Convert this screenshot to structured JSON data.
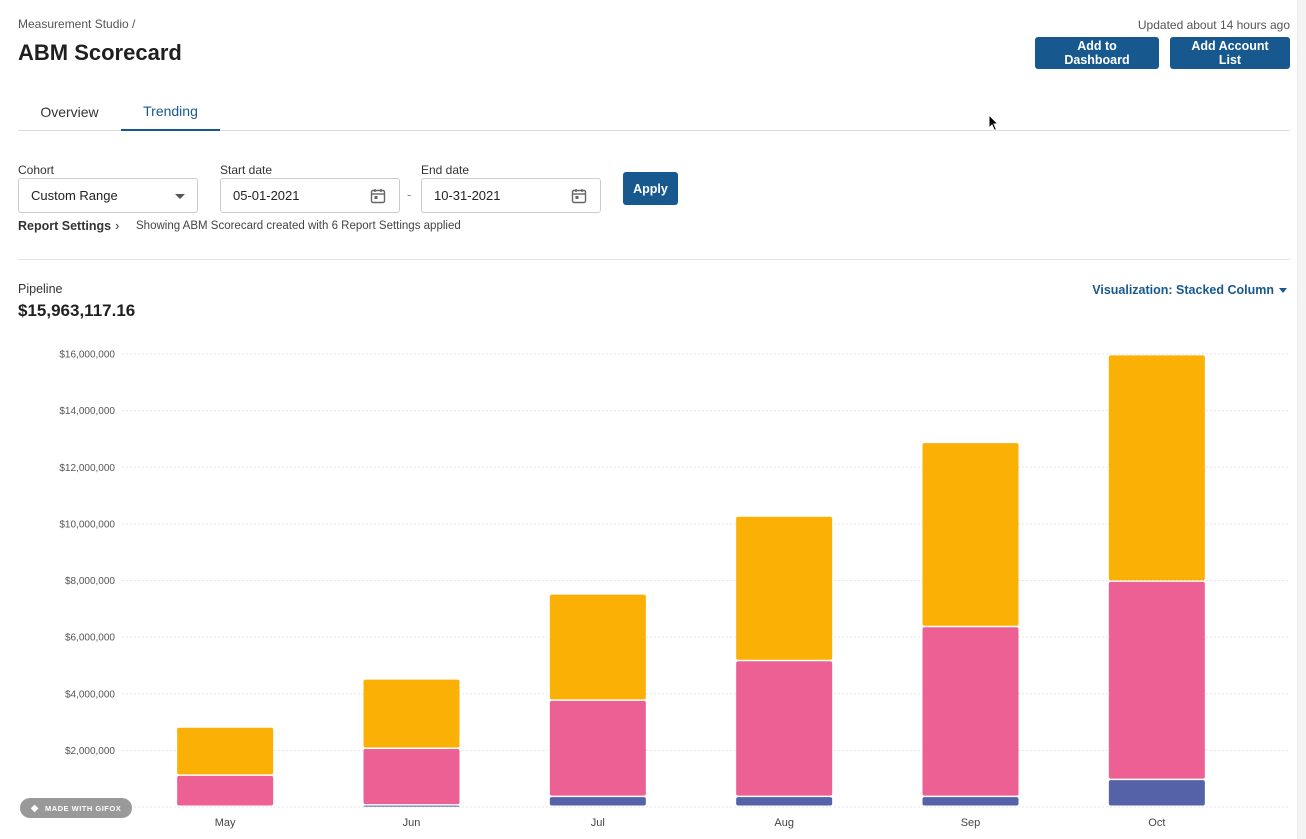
{
  "header": {
    "breadcrumb": "Measurement Studio /",
    "title": "ABM Scorecard",
    "updated": "Updated about 14 hours ago",
    "add_dashboard_label": "Add to Dashboard",
    "add_account_list_label": "Add Account List"
  },
  "tabs": [
    {
      "label": "Overview",
      "active": false
    },
    {
      "label": "Trending",
      "active": true
    }
  ],
  "filters": {
    "cohort_label": "Cohort",
    "cohort_value": "Custom Range",
    "start_label": "Start date",
    "start_value": "05-01-2021",
    "separator": "-",
    "end_label": "End date",
    "end_value": "10-31-2021",
    "apply_label": "Apply"
  },
  "report": {
    "settings_label": "Report Settings",
    "chevron": "›",
    "note": "Showing ABM Scorecard created with 6 Report Settings applied"
  },
  "metric": {
    "label": "Pipeline",
    "value": "$15,963,117.16",
    "visualization": "Visualization: Stacked Column"
  },
  "colors": {
    "accent": "#17598f",
    "series_bottom": "#5662a8",
    "series_middle": "#ec6093",
    "series_top": "#fab005"
  },
  "chart_data": {
    "type": "bar",
    "stacked": true,
    "categories": [
      "May",
      "Jun",
      "Jul",
      "Aug",
      "Sep",
      "Oct"
    ],
    "series": [
      {
        "color": "#5662a8",
        "values": [
          0,
          50000,
          350000,
          350000,
          350000,
          950000
        ]
      },
      {
        "color": "#ec6093",
        "values": [
          1100000,
          2000000,
          3400000,
          4800000,
          6000000,
          7000000
        ]
      },
      {
        "color": "#fab005",
        "values": [
          1700000,
          2450000,
          3750000,
          5100000,
          6500000,
          8000000
        ]
      }
    ],
    "yticks": [
      "$2,000,000",
      "$4,000,000",
      "$6,000,000",
      "$8,000,000",
      "$10,000,000",
      "$12,000,000",
      "$14,000,000",
      "$16,000,000"
    ],
    "ytick_values": [
      2000000,
      4000000,
      6000000,
      8000000,
      10000000,
      12000000,
      14000000,
      16000000
    ],
    "ylim": [
      0,
      16000000
    ],
    "grid": true,
    "legend": "none",
    "xlabel": "",
    "ylabel": ""
  },
  "watermark": {
    "text": "MADE WITH GIFOX"
  }
}
